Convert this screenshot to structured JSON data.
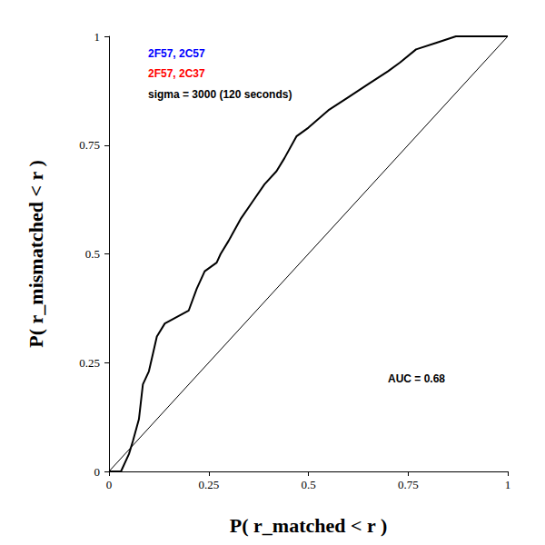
{
  "chart_data": {
    "type": "line",
    "x_label": "P( r_matched < r )",
    "y_label": "P( r_mismatched < r )",
    "xlim": [
      0,
      1
    ],
    "ylim": [
      0,
      1
    ],
    "xticks": [
      0,
      0.25,
      0.5,
      0.75,
      1
    ],
    "yticks": [
      0,
      0.25,
      0.5,
      0.75,
      1
    ],
    "grid": false,
    "annotations": [
      {
        "text": "2F57, 2C57",
        "color": "#0000ff"
      },
      {
        "text": "2F57, 2C37",
        "color": "#ff0000"
      },
      {
        "text": "sigma = 3000 (120 seconds)",
        "color": "#000000"
      },
      {
        "text": "AUC = 0.68",
        "color": "#000000"
      }
    ],
    "series": [
      {
        "color": "#000000",
        "x": [
          0,
          0.03,
          0.05,
          0.06,
          0.075,
          0.085,
          0.09,
          0.1,
          0.11,
          0.12,
          0.14,
          0.16,
          0.18,
          0.2,
          0.22,
          0.24,
          0.27,
          0.28,
          0.3,
          0.33,
          0.36,
          0.39,
          0.42,
          0.44,
          0.47,
          0.5,
          0.55,
          0.6,
          0.65,
          0.7,
          0.73,
          0.77,
          0.82,
          0.87,
          0.92,
          1
        ],
        "values": [
          0,
          0,
          0.04,
          0.07,
          0.12,
          0.2,
          0.21,
          0.23,
          0.27,
          0.31,
          0.34,
          0.35,
          0.36,
          0.37,
          0.42,
          0.46,
          0.48,
          0.5,
          0.53,
          0.58,
          0.62,
          0.66,
          0.69,
          0.72,
          0.77,
          0.79,
          0.83,
          0.86,
          0.89,
          0.92,
          0.94,
          0.97,
          0.985,
          1,
          1,
          1
        ]
      },
      {
        "color": "#000000",
        "x": [
          0,
          1
        ],
        "values": [
          0,
          1
        ]
      }
    ]
  }
}
